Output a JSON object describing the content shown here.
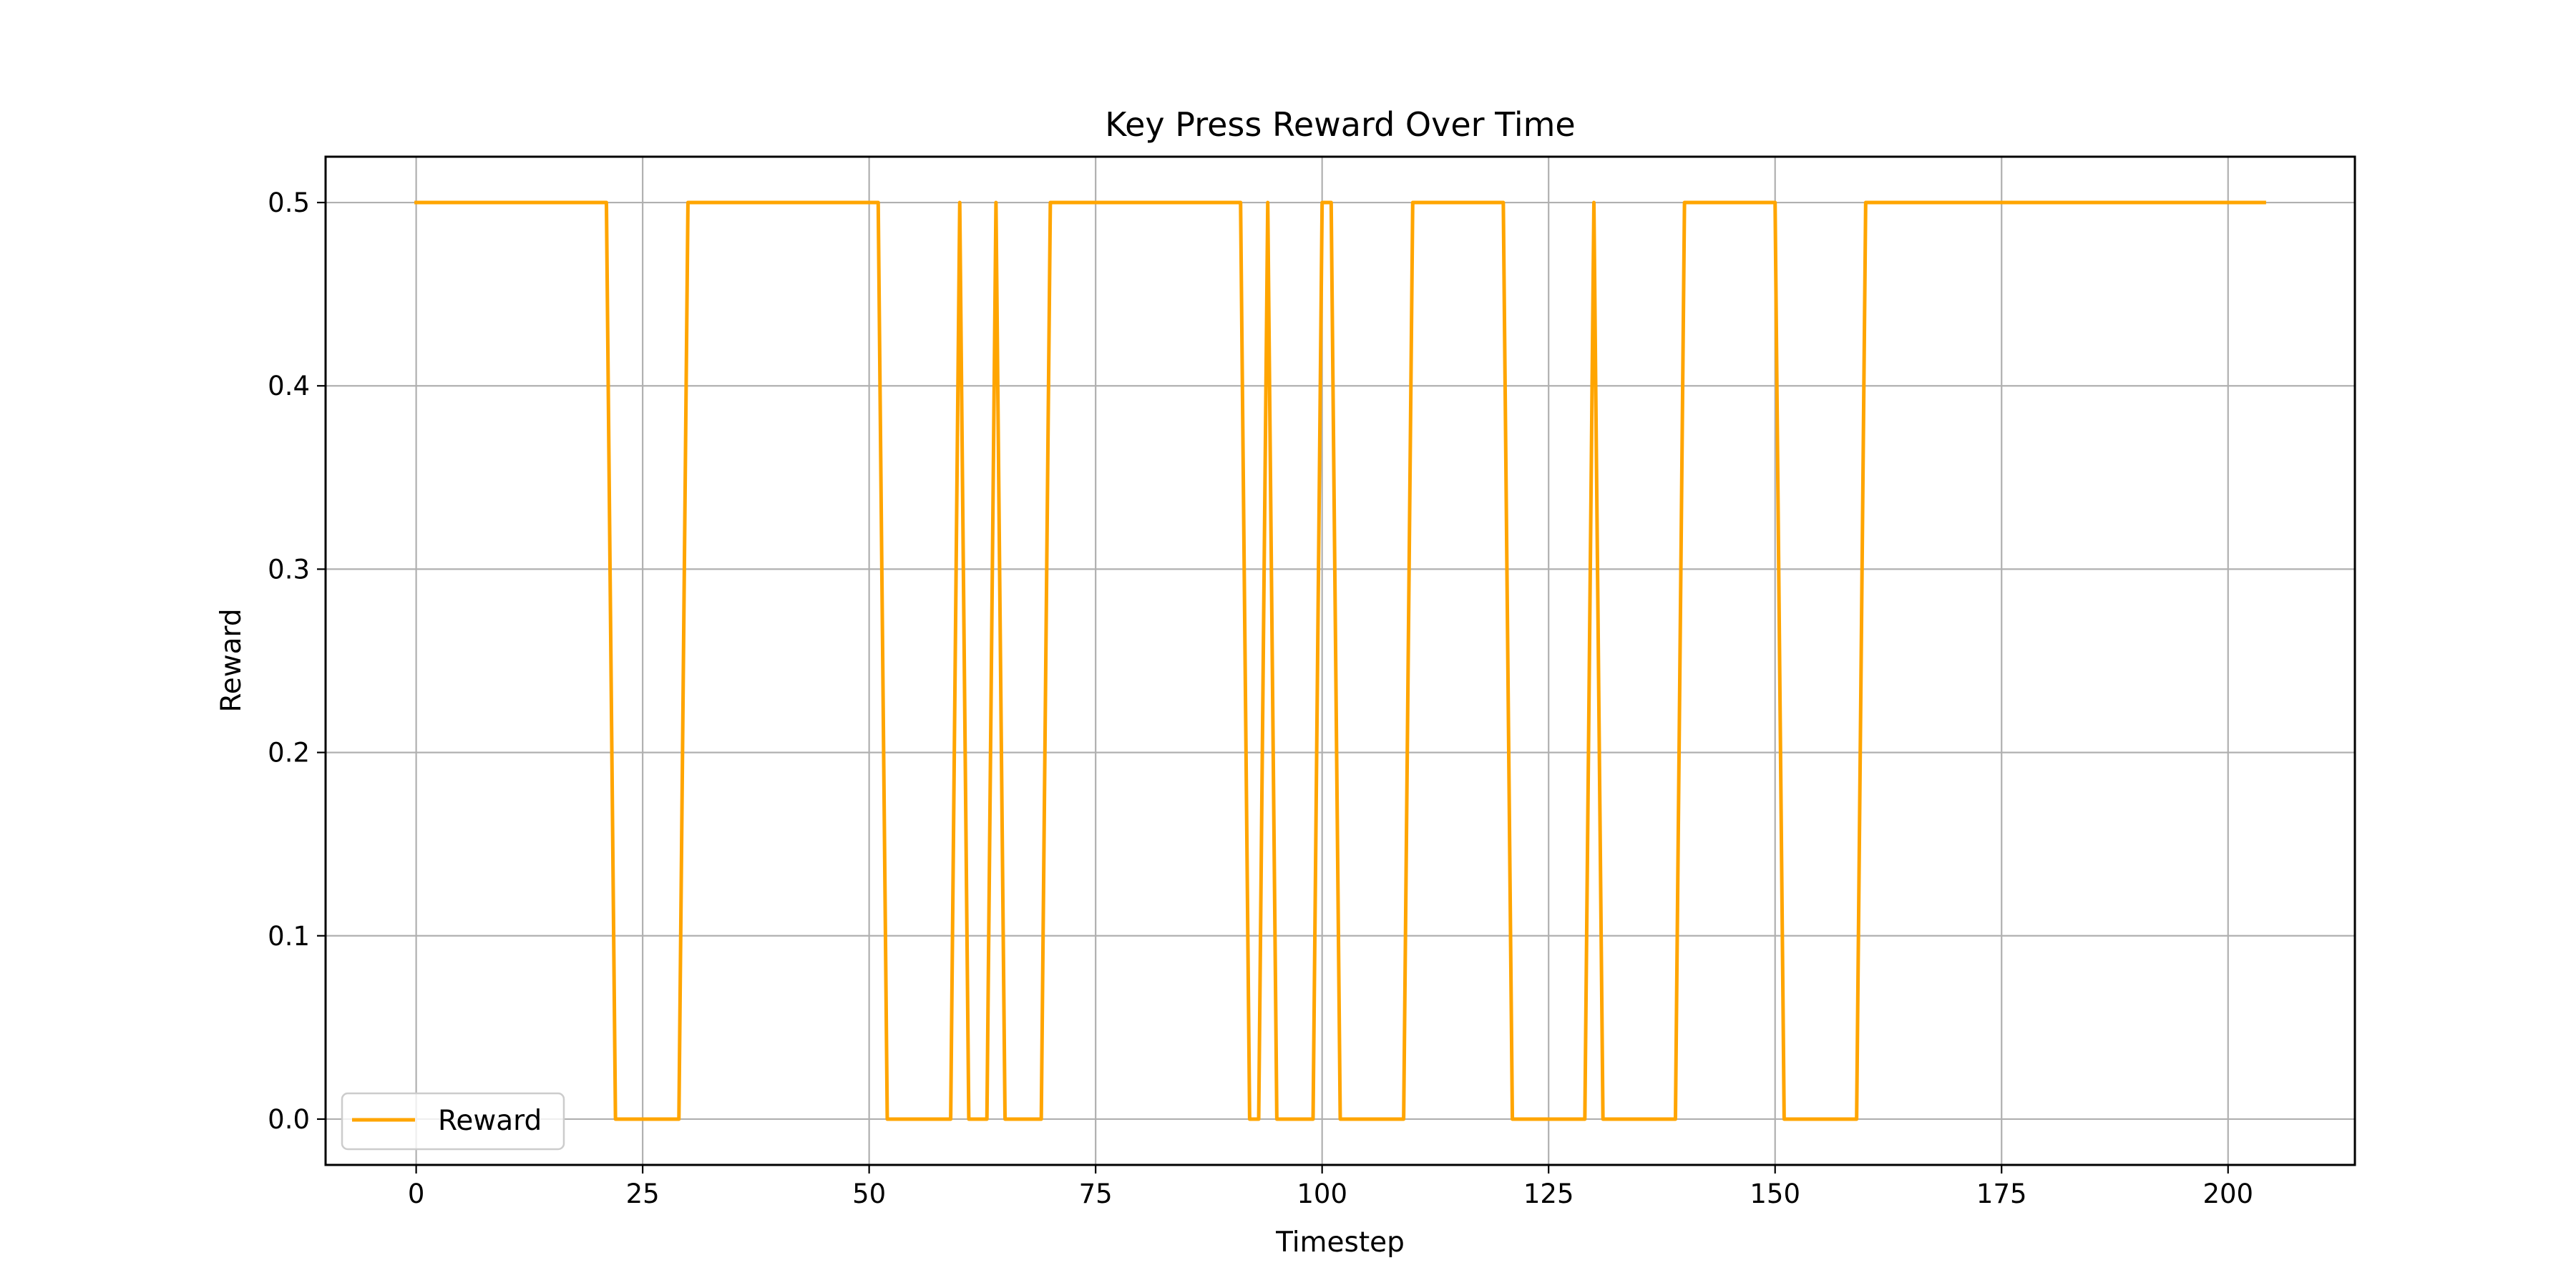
{
  "chart_data": {
    "type": "line",
    "title": "Key Press Reward Over Time",
    "xlabel": "Timestep",
    "ylabel": "Reward",
    "xlim": [
      -10,
      214
    ],
    "ylim": [
      -0.025,
      0.525
    ],
    "xticks": [
      0,
      25,
      50,
      75,
      100,
      125,
      150,
      175,
      200
    ],
    "yticks": [
      0.0,
      0.1,
      0.2,
      0.3,
      0.4,
      0.5
    ],
    "ytick_labels": [
      "0.0",
      "0.1",
      "0.2",
      "0.3",
      "0.4",
      "0.5"
    ],
    "grid": true,
    "legend_position": "lower-left",
    "series": [
      {
        "name": "Reward",
        "color": "#FFA500",
        "x": [
          0,
          21,
          22,
          29,
          30,
          51,
          52,
          59,
          60,
          61,
          63,
          64,
          65,
          69,
          70,
          91,
          92,
          93,
          94,
          95,
          99,
          100,
          101,
          102,
          109,
          110,
          120,
          121,
          129,
          130,
          131,
          139,
          140,
          150,
          151,
          159,
          160,
          204
        ],
        "y": [
          0.5,
          0.5,
          0,
          0,
          0.5,
          0.5,
          0,
          0,
          0.5,
          0,
          0,
          0.5,
          0,
          0,
          0.5,
          0.5,
          0,
          0,
          0.5,
          0,
          0,
          0.5,
          0.5,
          0,
          0,
          0.5,
          0.5,
          0,
          0,
          0.5,
          0,
          0,
          0.5,
          0.5,
          0,
          0,
          0.5,
          0.5
        ]
      }
    ]
  }
}
